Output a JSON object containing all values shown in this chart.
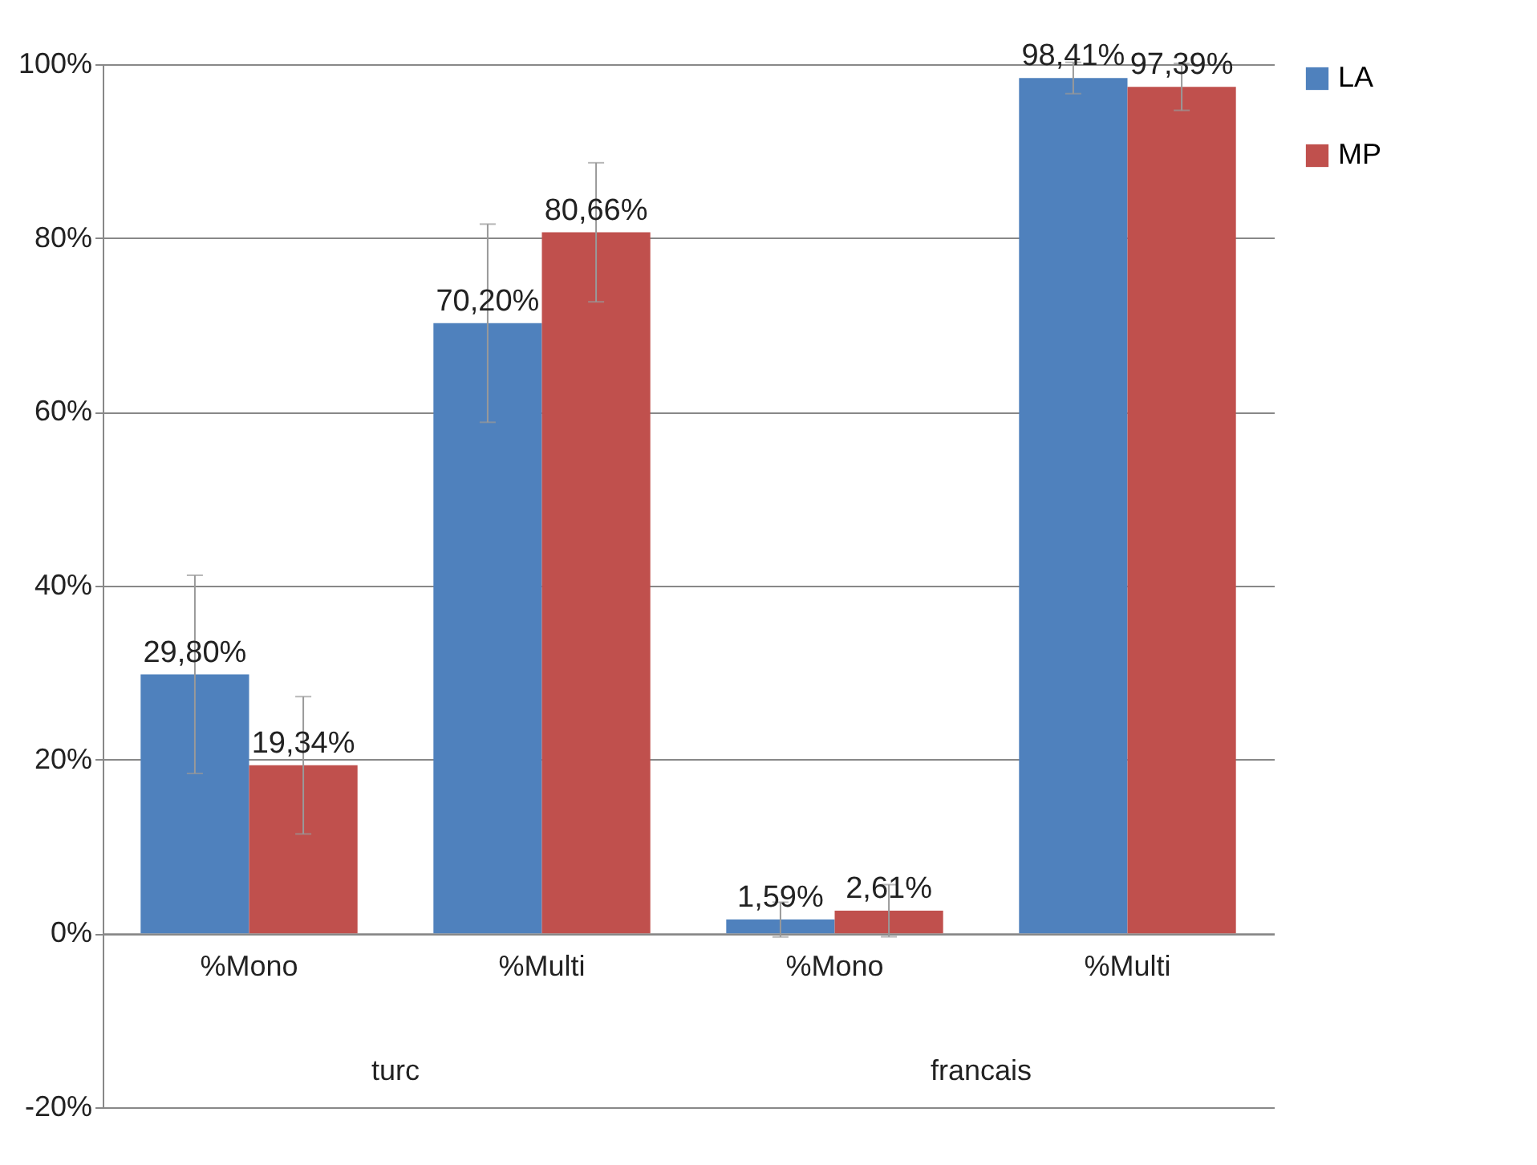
{
  "chart_data": {
    "type": "bar",
    "categories": [
      "%Mono",
      "%Multi",
      "%Mono",
      "%Multi"
    ],
    "series": [
      {
        "name": "LA",
        "color": "#4f81bd",
        "values": [
          29.8,
          70.2,
          1.59,
          98.41
        ],
        "errors": [
          11.4,
          11.4,
          2,
          1.8
        ],
        "value_labels": [
          "29,80%",
          "70,20%",
          "1,59%",
          "98,41%"
        ]
      },
      {
        "name": "MP",
        "color": "#c0504d",
        "values": [
          19.34,
          80.66,
          2.61,
          97.39
        ],
        "errors": [
          7.9,
          8,
          3,
          2.7
        ],
        "value_labels": [
          "19,34%",
          "80,66%",
          "2,61%",
          "97,39%"
        ]
      }
    ],
    "annotations": [
      "turc",
      "francais"
    ],
    "ylim": [
      -20,
      100
    ],
    "yticks": [
      {
        "value": -20,
        "label": "-20%"
      },
      {
        "value": 0,
        "label": "0%"
      },
      {
        "value": 20,
        "label": "20%"
      },
      {
        "value": 40,
        "label": "40%"
      },
      {
        "value": 60,
        "label": "60%"
      },
      {
        "value": 80,
        "label": "80%"
      },
      {
        "value": 100,
        "label": "100%"
      }
    ],
    "grid": "y",
    "legend": "right"
  }
}
